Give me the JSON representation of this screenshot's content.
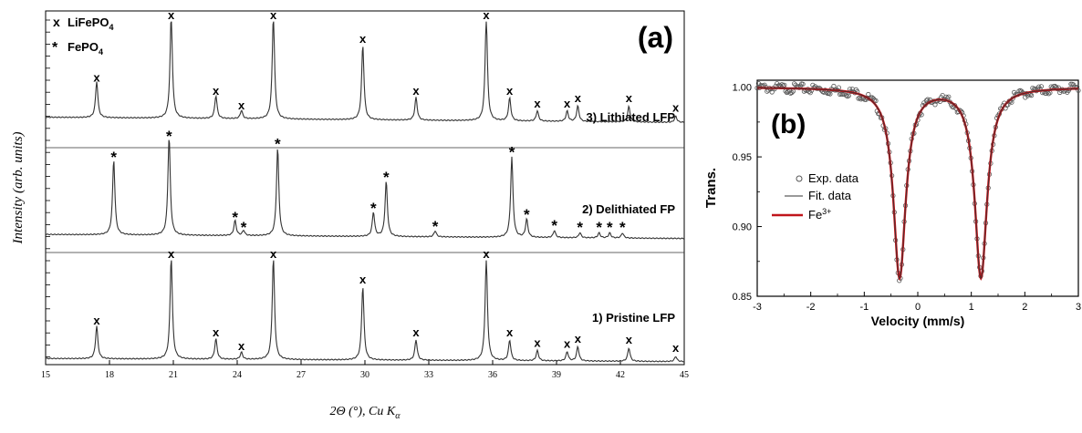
{
  "chart_data": [
    {
      "type": "line",
      "panel_label": "(a)",
      "xlabel": "2Θ (°), Cu Kα",
      "xlabel_parts": {
        "main": "2Θ (°), Cu K",
        "sub": "α"
      },
      "ylabel": "Intensity (arb. units)",
      "xlim": [
        15,
        45
      ],
      "x_ticks": [
        15,
        18,
        21,
        24,
        27,
        30,
        33,
        36,
        39,
        42,
        45
      ],
      "x_tick_labels": [
        "15",
        "18",
        "21",
        "24",
        "27",
        "30",
        "33",
        "36",
        "39",
        "42",
        "45"
      ],
      "legend": [
        {
          "marker": "x",
          "label": "LiFePO4",
          "text": "LiFePO",
          "sub": "4"
        },
        {
          "marker": "*",
          "label": "FePO4",
          "text": "FePO",
          "sub": "4"
        }
      ],
      "series": [
        {
          "name": "3) Lithiated LFP",
          "label": "3) Lithiated LFP",
          "marker": "x",
          "baseline": 0.1,
          "peaks": [
            [
              17.4,
              0.35
            ],
            [
              20.9,
              1.0
            ],
            [
              23.0,
              0.22
            ],
            [
              24.2,
              0.08
            ],
            [
              25.7,
              1.0
            ],
            [
              29.9,
              0.72
            ],
            [
              32.4,
              0.22
            ],
            [
              35.7,
              1.0
            ],
            [
              36.8,
              0.22
            ],
            [
              38.1,
              0.1
            ],
            [
              39.5,
              0.1
            ],
            [
              40.0,
              0.15
            ],
            [
              42.4,
              0.15
            ],
            [
              44.6,
              0.06
            ]
          ]
        },
        {
          "name": "2) Delithiated FP",
          "label": "2) Delithiated FP",
          "marker": "*",
          "baseline": 0.08,
          "peaks": [
            [
              18.2,
              0.75
            ],
            [
              20.8,
              1.0
            ],
            [
              23.9,
              0.15
            ],
            [
              24.3,
              0.05
            ],
            [
              25.9,
              0.88
            ],
            [
              30.4,
              0.24
            ],
            [
              31.0,
              0.55
            ],
            [
              33.3,
              0.06
            ],
            [
              36.9,
              0.8
            ],
            [
              37.6,
              0.18
            ],
            [
              38.9,
              0.07
            ],
            [
              40.1,
              0.05
            ],
            [
              41.0,
              0.05
            ],
            [
              41.5,
              0.05
            ],
            [
              42.1,
              0.05
            ]
          ]
        },
        {
          "name": "1) Pristine LFP",
          "label": "1) Pristine LFP",
          "marker": "x",
          "baseline": 0.06,
          "peaks": [
            [
              17.4,
              0.32
            ],
            [
              20.9,
              1.0
            ],
            [
              23.0,
              0.2
            ],
            [
              24.2,
              0.07
            ],
            [
              25.7,
              1.0
            ],
            [
              29.9,
              0.72
            ],
            [
              32.4,
              0.2
            ],
            [
              35.7,
              1.0
            ],
            [
              36.8,
              0.2
            ],
            [
              38.1,
              0.1
            ],
            [
              39.5,
              0.09
            ],
            [
              40.0,
              0.14
            ],
            [
              42.4,
              0.13
            ],
            [
              44.6,
              0.05
            ]
          ]
        }
      ]
    },
    {
      "type": "scatter",
      "panel_label": "(b)",
      "xlabel": "Velocity (mm/s)",
      "ylabel": "Trans.",
      "xlim": [
        -3,
        3
      ],
      "ylim": [
        0.85,
        1.005
      ],
      "x_ticks": [
        -3,
        -2,
        -1,
        0,
        1,
        2,
        3
      ],
      "x_tick_labels": [
        "-3",
        "-2",
        "-1",
        "0",
        "1",
        "2",
        "3"
      ],
      "y_ticks": [
        0.85,
        0.9,
        0.95,
        1.0
      ],
      "y_tick_labels": [
        "0.85",
        "0.90",
        "0.95",
        "1.00"
      ],
      "doublet": {
        "center_shift": 0.42,
        "quadrupole_splitting": 1.52,
        "linewidth": 0.28,
        "depth": 0.136
      },
      "legend": [
        {
          "kind": "open-circle",
          "label": "Exp. data",
          "color": "#555555"
        },
        {
          "kind": "thin-line",
          "label": "Fit. data",
          "color": "#333333"
        },
        {
          "kind": "thick-line",
          "label": "Fe3+",
          "text": "Fe",
          "sup": "3+",
          "color": "#c0151b"
        }
      ],
      "series": [
        {
          "name": "Exp. data",
          "style": "open-circle",
          "color": "#555555"
        },
        {
          "name": "Fit. data",
          "style": "thin-line",
          "color": "#333333"
        },
        {
          "name": "Fe3+",
          "style": "thick-line",
          "color": "#c0151b"
        }
      ]
    }
  ]
}
